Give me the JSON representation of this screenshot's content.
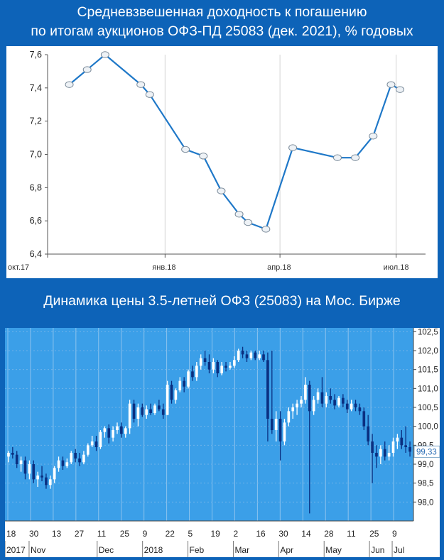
{
  "headers": {
    "yield_title_line1": "Средневзвешенная доходность к погашению",
    "yield_title_line2": "по итогам аукционов ОФЗ-ПД 25083 (дек. 2021), % годовых",
    "price_title": "Динамика цены 3.5-летней ОФЗ (25083) на Мос. Бирже"
  },
  "chart_data": [
    {
      "type": "line",
      "title": "Средневзвешенная доходность к погашению по итогам аукционов ОФЗ-ПД 25083 (дек. 2021), % годовых",
      "xlabel": "",
      "ylabel": "",
      "ylim": [
        6.4,
        7.6
      ],
      "y_ticks": [
        "6,4",
        "6,6",
        "6,8",
        "7,0",
        "7,2",
        "7,4",
        "7,6"
      ],
      "x_tick_labels": [
        "окт.17",
        "янв.18",
        "апр.18",
        "июл.18"
      ],
      "x_tick_dates": [
        "2017-10-01",
        "2018-01-01",
        "2018-04-01",
        "2018-07-01"
      ],
      "x_range": [
        "2017-10-01",
        "2018-07-24"
      ],
      "grid": "vertical",
      "line_color": "#1F78C8",
      "points": [
        {
          "x": "2017-10-18",
          "y": 7.42
        },
        {
          "x": "2017-11-01",
          "y": 7.51
        },
        {
          "x": "2017-11-15",
          "y": 7.6
        },
        {
          "x": "2017-12-13",
          "y": 7.42
        },
        {
          "x": "2017-12-20",
          "y": 7.36
        },
        {
          "x": "2018-01-17",
          "y": 7.03
        },
        {
          "x": "2018-01-31",
          "y": 6.99
        },
        {
          "x": "2018-02-14",
          "y": 6.78
        },
        {
          "x": "2018-02-28",
          "y": 6.64
        },
        {
          "x": "2018-03-07",
          "y": 6.59
        },
        {
          "x": "2018-03-21",
          "y": 6.55
        },
        {
          "x": "2018-04-11",
          "y": 7.04
        },
        {
          "x": "2018-05-16",
          "y": 6.98
        },
        {
          "x": "2018-05-30",
          "y": 6.98
        },
        {
          "x": "2018-06-13",
          "y": 7.11
        },
        {
          "x": "2018-06-27",
          "y": 7.42
        },
        {
          "x": "2018-07-04",
          "y": 7.39
        }
      ]
    },
    {
      "type": "candlestick",
      "title": "Динамика цены 3.5-летней ОФЗ (25083) на Мос. Бирже",
      "ylim": [
        97.5,
        102.6
      ],
      "y_ticks": [
        "98,0",
        "98,5",
        "99,0",
        "99,5",
        "100,0",
        "100,5",
        "101,0",
        "101,5",
        "102,0",
        "102,5"
      ],
      "last_price": "99,33",
      "day_labels": [
        "18",
        "30",
        "13",
        "27",
        "11",
        "25",
        "9",
        "22",
        "5",
        "19",
        "2",
        "16",
        "30",
        "14",
        "28",
        "11",
        "25",
        "9"
      ],
      "month_labels": [
        "2017",
        "Nov",
        "Dec",
        "2018",
        "Feb",
        "Mar",
        "Apr",
        "May",
        "Jun",
        "Jul"
      ],
      "grid": "vertical",
      "colors": {
        "up": "#ffffff",
        "down": "#0a2f80",
        "background": "#3B9FE8",
        "last_price_tag": "#ffffff"
      },
      "candles": [
        {
          "o": 99.2,
          "h": 99.35,
          "l": 99.05,
          "c": 99.3
        },
        {
          "o": 99.3,
          "h": 99.45,
          "l": 99.15,
          "c": 99.25
        },
        {
          "o": 99.25,
          "h": 99.35,
          "l": 98.9,
          "c": 99.0
        },
        {
          "o": 99.0,
          "h": 99.2,
          "l": 98.8,
          "c": 99.1
        },
        {
          "o": 99.1,
          "h": 99.2,
          "l": 98.6,
          "c": 98.75
        },
        {
          "o": 98.75,
          "h": 99.1,
          "l": 98.6,
          "c": 99.0
        },
        {
          "o": 99.0,
          "h": 99.1,
          "l": 98.5,
          "c": 98.6
        },
        {
          "o": 98.6,
          "h": 98.8,
          "l": 98.4,
          "c": 98.7
        },
        {
          "o": 98.7,
          "h": 98.95,
          "l": 98.55,
          "c": 98.65
        },
        {
          "o": 98.65,
          "h": 98.75,
          "l": 98.35,
          "c": 98.45
        },
        {
          "o": 98.45,
          "h": 98.7,
          "l": 98.35,
          "c": 98.6
        },
        {
          "o": 98.6,
          "h": 98.95,
          "l": 98.5,
          "c": 98.9
        },
        {
          "o": 98.9,
          "h": 99.2,
          "l": 98.8,
          "c": 99.1
        },
        {
          "o": 99.1,
          "h": 99.2,
          "l": 98.85,
          "c": 98.95
        },
        {
          "o": 98.95,
          "h": 99.15,
          "l": 98.9,
          "c": 99.05
        },
        {
          "o": 99.05,
          "h": 99.35,
          "l": 99.0,
          "c": 99.3
        },
        {
          "o": 99.3,
          "h": 99.4,
          "l": 99.05,
          "c": 99.15
        },
        {
          "o": 99.15,
          "h": 99.3,
          "l": 98.95,
          "c": 99.05
        },
        {
          "o": 99.05,
          "h": 99.35,
          "l": 99.0,
          "c": 99.25
        },
        {
          "o": 99.25,
          "h": 99.55,
          "l": 99.2,
          "c": 99.5
        },
        {
          "o": 99.5,
          "h": 99.75,
          "l": 99.45,
          "c": 99.6
        },
        {
          "o": 99.6,
          "h": 99.75,
          "l": 99.35,
          "c": 99.45
        },
        {
          "o": 99.45,
          "h": 99.9,
          "l": 99.4,
          "c": 99.85
        },
        {
          "o": 99.85,
          "h": 100.0,
          "l": 99.7,
          "c": 99.95
        },
        {
          "o": 99.95,
          "h": 100.05,
          "l": 99.55,
          "c": 99.7
        },
        {
          "o": 99.7,
          "h": 100.0,
          "l": 99.6,
          "c": 99.9
        },
        {
          "o": 99.9,
          "h": 100.1,
          "l": 99.8,
          "c": 100.0
        },
        {
          "o": 100.0,
          "h": 100.1,
          "l": 99.7,
          "c": 99.8
        },
        {
          "o": 99.8,
          "h": 100.0,
          "l": 99.7,
          "c": 99.95
        },
        {
          "o": 99.95,
          "h": 100.7,
          "l": 99.8,
          "c": 100.6
        },
        {
          "o": 100.6,
          "h": 100.7,
          "l": 100.1,
          "c": 100.2
        },
        {
          "o": 100.2,
          "h": 100.6,
          "l": 100.0,
          "c": 100.5
        },
        {
          "o": 100.5,
          "h": 100.6,
          "l": 100.25,
          "c": 100.3
        },
        {
          "o": 100.3,
          "h": 100.55,
          "l": 100.2,
          "c": 100.45
        },
        {
          "o": 100.45,
          "h": 100.6,
          "l": 100.3,
          "c": 100.35
        },
        {
          "o": 100.35,
          "h": 100.6,
          "l": 100.3,
          "c": 100.55
        },
        {
          "o": 100.55,
          "h": 100.7,
          "l": 100.4,
          "c": 100.45
        },
        {
          "o": 100.45,
          "h": 100.6,
          "l": 100.2,
          "c": 100.3
        },
        {
          "o": 100.3,
          "h": 101.2,
          "l": 100.3,
          "c": 101.1
        },
        {
          "o": 101.1,
          "h": 101.2,
          "l": 100.6,
          "c": 100.7
        },
        {
          "o": 100.7,
          "h": 101.0,
          "l": 100.6,
          "c": 100.95
        },
        {
          "o": 100.95,
          "h": 101.3,
          "l": 100.9,
          "c": 101.2
        },
        {
          "o": 101.2,
          "h": 101.3,
          "l": 100.9,
          "c": 101.05
        },
        {
          "o": 101.05,
          "h": 101.5,
          "l": 101.0,
          "c": 101.45
        },
        {
          "o": 101.45,
          "h": 101.6,
          "l": 101.2,
          "c": 101.3
        },
        {
          "o": 101.3,
          "h": 101.7,
          "l": 101.2,
          "c": 101.6
        },
        {
          "o": 101.6,
          "h": 101.9,
          "l": 101.5,
          "c": 101.8
        },
        {
          "o": 101.8,
          "h": 102.0,
          "l": 101.6,
          "c": 101.7
        },
        {
          "o": 101.7,
          "h": 101.9,
          "l": 101.4,
          "c": 101.5
        },
        {
          "o": 101.5,
          "h": 101.8,
          "l": 101.4,
          "c": 101.7
        },
        {
          "o": 101.7,
          "h": 101.75,
          "l": 101.3,
          "c": 101.4
        },
        {
          "o": 101.4,
          "h": 101.7,
          "l": 101.35,
          "c": 101.6
        },
        {
          "o": 101.6,
          "h": 101.7,
          "l": 101.45,
          "c": 101.55
        },
        {
          "o": 101.55,
          "h": 101.7,
          "l": 101.5,
          "c": 101.6
        },
        {
          "o": 101.6,
          "h": 101.85,
          "l": 101.55,
          "c": 101.75
        },
        {
          "o": 101.75,
          "h": 102.05,
          "l": 101.7,
          "c": 102.0
        },
        {
          "o": 102.0,
          "h": 102.1,
          "l": 101.8,
          "c": 101.9
        },
        {
          "o": 101.9,
          "h": 102.0,
          "l": 101.7,
          "c": 101.8
        },
        {
          "o": 101.8,
          "h": 102.0,
          "l": 101.75,
          "c": 101.95
        },
        {
          "o": 101.95,
          "h": 102.0,
          "l": 101.75,
          "c": 101.8
        },
        {
          "o": 101.8,
          "h": 102.0,
          "l": 101.75,
          "c": 101.9
        },
        {
          "o": 101.9,
          "h": 102.0,
          "l": 101.7,
          "c": 101.75
        },
        {
          "o": 101.75,
          "h": 101.95,
          "l": 99.6,
          "c": 100.2
        },
        {
          "o": 100.2,
          "h": 102.0,
          "l": 99.8,
          "c": 99.9
        },
        {
          "o": 99.9,
          "h": 100.4,
          "l": 99.6,
          "c": 100.2
        },
        {
          "o": 100.2,
          "h": 100.4,
          "l": 99.1,
          "c": 99.6
        },
        {
          "o": 99.6,
          "h": 100.2,
          "l": 99.5,
          "c": 100.1
        },
        {
          "o": 100.1,
          "h": 100.5,
          "l": 100.0,
          "c": 100.4
        },
        {
          "o": 100.4,
          "h": 100.6,
          "l": 100.2,
          "c": 100.5
        },
        {
          "o": 100.5,
          "h": 100.7,
          "l": 100.3,
          "c": 100.6
        },
        {
          "o": 100.6,
          "h": 100.8,
          "l": 100.5,
          "c": 100.7
        },
        {
          "o": 100.7,
          "h": 101.3,
          "l": 100.6,
          "c": 101.1
        },
        {
          "o": 101.1,
          "h": 101.2,
          "l": 97.7,
          "c": 100.4
        },
        {
          "o": 100.4,
          "h": 100.8,
          "l": 100.3,
          "c": 100.7
        },
        {
          "o": 100.7,
          "h": 101.0,
          "l": 100.6,
          "c": 100.9
        },
        {
          "o": 100.9,
          "h": 101.3,
          "l": 100.5,
          "c": 100.6
        },
        {
          "o": 100.6,
          "h": 100.9,
          "l": 100.5,
          "c": 100.8
        },
        {
          "o": 100.8,
          "h": 101.0,
          "l": 100.6,
          "c": 100.7
        },
        {
          "o": 100.7,
          "h": 100.85,
          "l": 100.45,
          "c": 100.55
        },
        {
          "o": 100.55,
          "h": 100.8,
          "l": 100.5,
          "c": 100.75
        },
        {
          "o": 100.75,
          "h": 100.85,
          "l": 100.5,
          "c": 100.6
        },
        {
          "o": 100.6,
          "h": 100.7,
          "l": 100.35,
          "c": 100.45
        },
        {
          "o": 100.45,
          "h": 100.7,
          "l": 100.4,
          "c": 100.6
        },
        {
          "o": 100.6,
          "h": 100.7,
          "l": 100.4,
          "c": 100.5
        },
        {
          "o": 100.5,
          "h": 100.6,
          "l": 100.3,
          "c": 100.4
        },
        {
          "o": 100.4,
          "h": 100.5,
          "l": 99.9,
          "c": 100.0
        },
        {
          "o": 100.0,
          "h": 100.3,
          "l": 99.5,
          "c": 99.6
        },
        {
          "o": 99.6,
          "h": 99.8,
          "l": 98.5,
          "c": 99.3
        },
        {
          "o": 99.3,
          "h": 99.5,
          "l": 98.9,
          "c": 99.2
        },
        {
          "o": 99.2,
          "h": 99.5,
          "l": 99.0,
          "c": 99.4
        },
        {
          "o": 99.4,
          "h": 99.6,
          "l": 99.1,
          "c": 99.2
        },
        {
          "o": 99.2,
          "h": 99.5,
          "l": 99.1,
          "c": 99.3
        },
        {
          "o": 99.3,
          "h": 99.7,
          "l": 99.2,
          "c": 99.6
        },
        {
          "o": 99.6,
          "h": 99.8,
          "l": 99.4,
          "c": 99.7
        },
        {
          "o": 99.7,
          "h": 99.9,
          "l": 99.4,
          "c": 99.5
        },
        {
          "o": 99.5,
          "h": 100.0,
          "l": 99.3,
          "c": 99.45
        },
        {
          "o": 99.45,
          "h": 99.6,
          "l": 99.2,
          "c": 99.33
        }
      ]
    }
  ]
}
